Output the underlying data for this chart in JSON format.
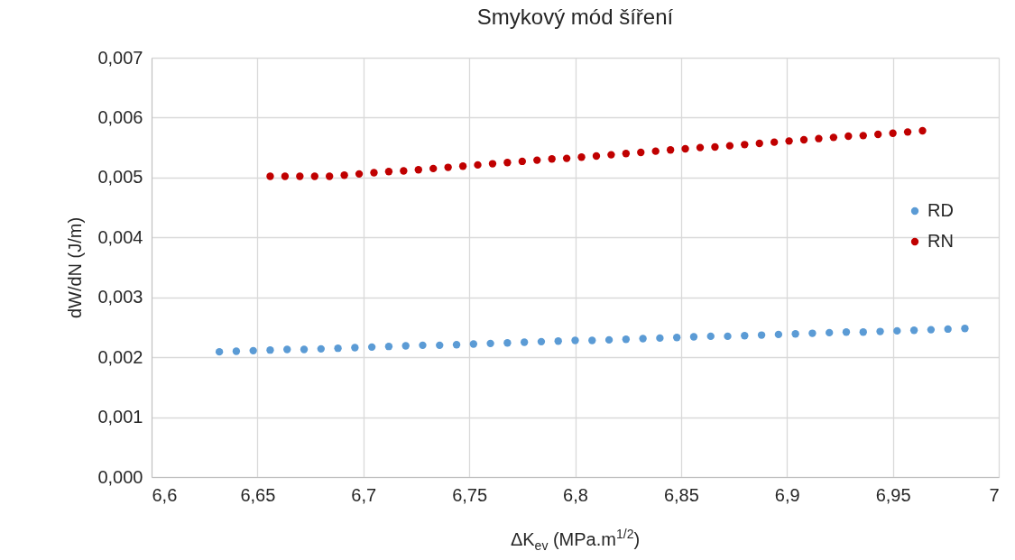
{
  "chart_data": {
    "type": "scatter",
    "title": "Smykový mód šíření",
    "xlabel": "ΔK$_{ev}$ (MPa.m$^{1/2}$)",
    "ylabel": "dW/dN (J/m)",
    "xlim": [
      6.6,
      7
    ],
    "xticks": [
      {
        "value": 6.6,
        "label": "6,6"
      },
      {
        "value": 6.65,
        "label": "6,65"
      },
      {
        "value": 6.7,
        "label": "6,7"
      },
      {
        "value": 6.75,
        "label": "6,75"
      },
      {
        "value": 6.8,
        "label": "6,8"
      },
      {
        "value": 6.85,
        "label": "6,85"
      },
      {
        "value": 6.9,
        "label": "6,9"
      },
      {
        "value": 6.95,
        "label": "6,95"
      },
      7
    ],
    "ylim": [
      0,
      0.007
    ],
    "yticks": [
      {
        "value": 0,
        "label": "0,000"
      },
      {
        "value": 0.001,
        "label": "0,001"
      },
      {
        "value": 0.002,
        "label": "0,002"
      },
      {
        "value": 0.003,
        "label": "0,003"
      },
      {
        "value": 0.004,
        "label": "0,004"
      },
      {
        "value": 0.005,
        "label": "0,005"
      },
      {
        "value": 0.006,
        "label": "0,006"
      },
      {
        "value": 0.007,
        "label": "0,007"
      }
    ],
    "grid": true,
    "legend": "right",
    "marker": "circle",
    "series": [
      {
        "name": "RD",
        "color": "#5b9bd5",
        "x": [
          6.632,
          6.64,
          6.648,
          6.656,
          6.664,
          6.672,
          6.68,
          6.688,
          6.696,
          6.704,
          6.712,
          6.72,
          6.728,
          6.736,
          6.744,
          6.752,
          6.76,
          6.768,
          6.776,
          6.784,
          6.792,
          6.8,
          6.808,
          6.816,
          6.824,
          6.832,
          6.84,
          6.848,
          6.856,
          6.864,
          6.872,
          6.88,
          6.888,
          6.896,
          6.904,
          6.912,
          6.92,
          6.928,
          6.936,
          6.944,
          6.952,
          6.96,
          6.968,
          6.976,
          6.984
        ],
        "values": [
          0.00209,
          0.0021,
          0.00211,
          0.00212,
          0.00213,
          0.00213,
          0.00214,
          0.00215,
          0.00216,
          0.00217,
          0.00218,
          0.00219,
          0.0022,
          0.0022,
          0.00221,
          0.00222,
          0.00223,
          0.00224,
          0.00225,
          0.00226,
          0.00227,
          0.00228,
          0.00228,
          0.00229,
          0.0023,
          0.00231,
          0.00232,
          0.00233,
          0.00234,
          0.00235,
          0.00235,
          0.00236,
          0.00237,
          0.00238,
          0.00239,
          0.0024,
          0.00241,
          0.00242,
          0.00242,
          0.00243,
          0.00244,
          0.00245,
          0.00246,
          0.00247,
          0.00248
        ]
      },
      {
        "name": "RN",
        "color": "#c00000",
        "x": [
          6.656,
          6.663,
          6.67,
          6.677,
          6.684,
          6.691,
          6.698,
          6.705,
          6.712,
          6.719,
          6.726,
          6.733,
          6.74,
          6.747,
          6.754,
          6.761,
          6.768,
          6.775,
          6.782,
          6.789,
          6.796,
          6.803,
          6.81,
          6.817,
          6.824,
          6.831,
          6.838,
          6.845,
          6.852,
          6.859,
          6.866,
          6.873,
          6.88,
          6.887,
          6.894,
          6.901,
          6.908,
          6.915,
          6.922,
          6.929,
          6.936,
          6.943,
          6.95,
          6.957,
          6.964
        ],
        "values": [
          0.00502,
          0.00502,
          0.00502,
          0.00502,
          0.00502,
          0.00504,
          0.00506,
          0.00508,
          0.0051,
          0.00511,
          0.00513,
          0.00515,
          0.00517,
          0.00519,
          0.00521,
          0.00523,
          0.00525,
          0.00527,
          0.00529,
          0.00531,
          0.00532,
          0.00534,
          0.00536,
          0.00538,
          0.0054,
          0.00542,
          0.00544,
          0.00546,
          0.00548,
          0.0055,
          0.00551,
          0.00553,
          0.00555,
          0.00557,
          0.00559,
          0.00561,
          0.00563,
          0.00565,
          0.00567,
          0.00569,
          0.0057,
          0.00572,
          0.00574,
          0.00576,
          0.00578
        ]
      }
    ]
  }
}
